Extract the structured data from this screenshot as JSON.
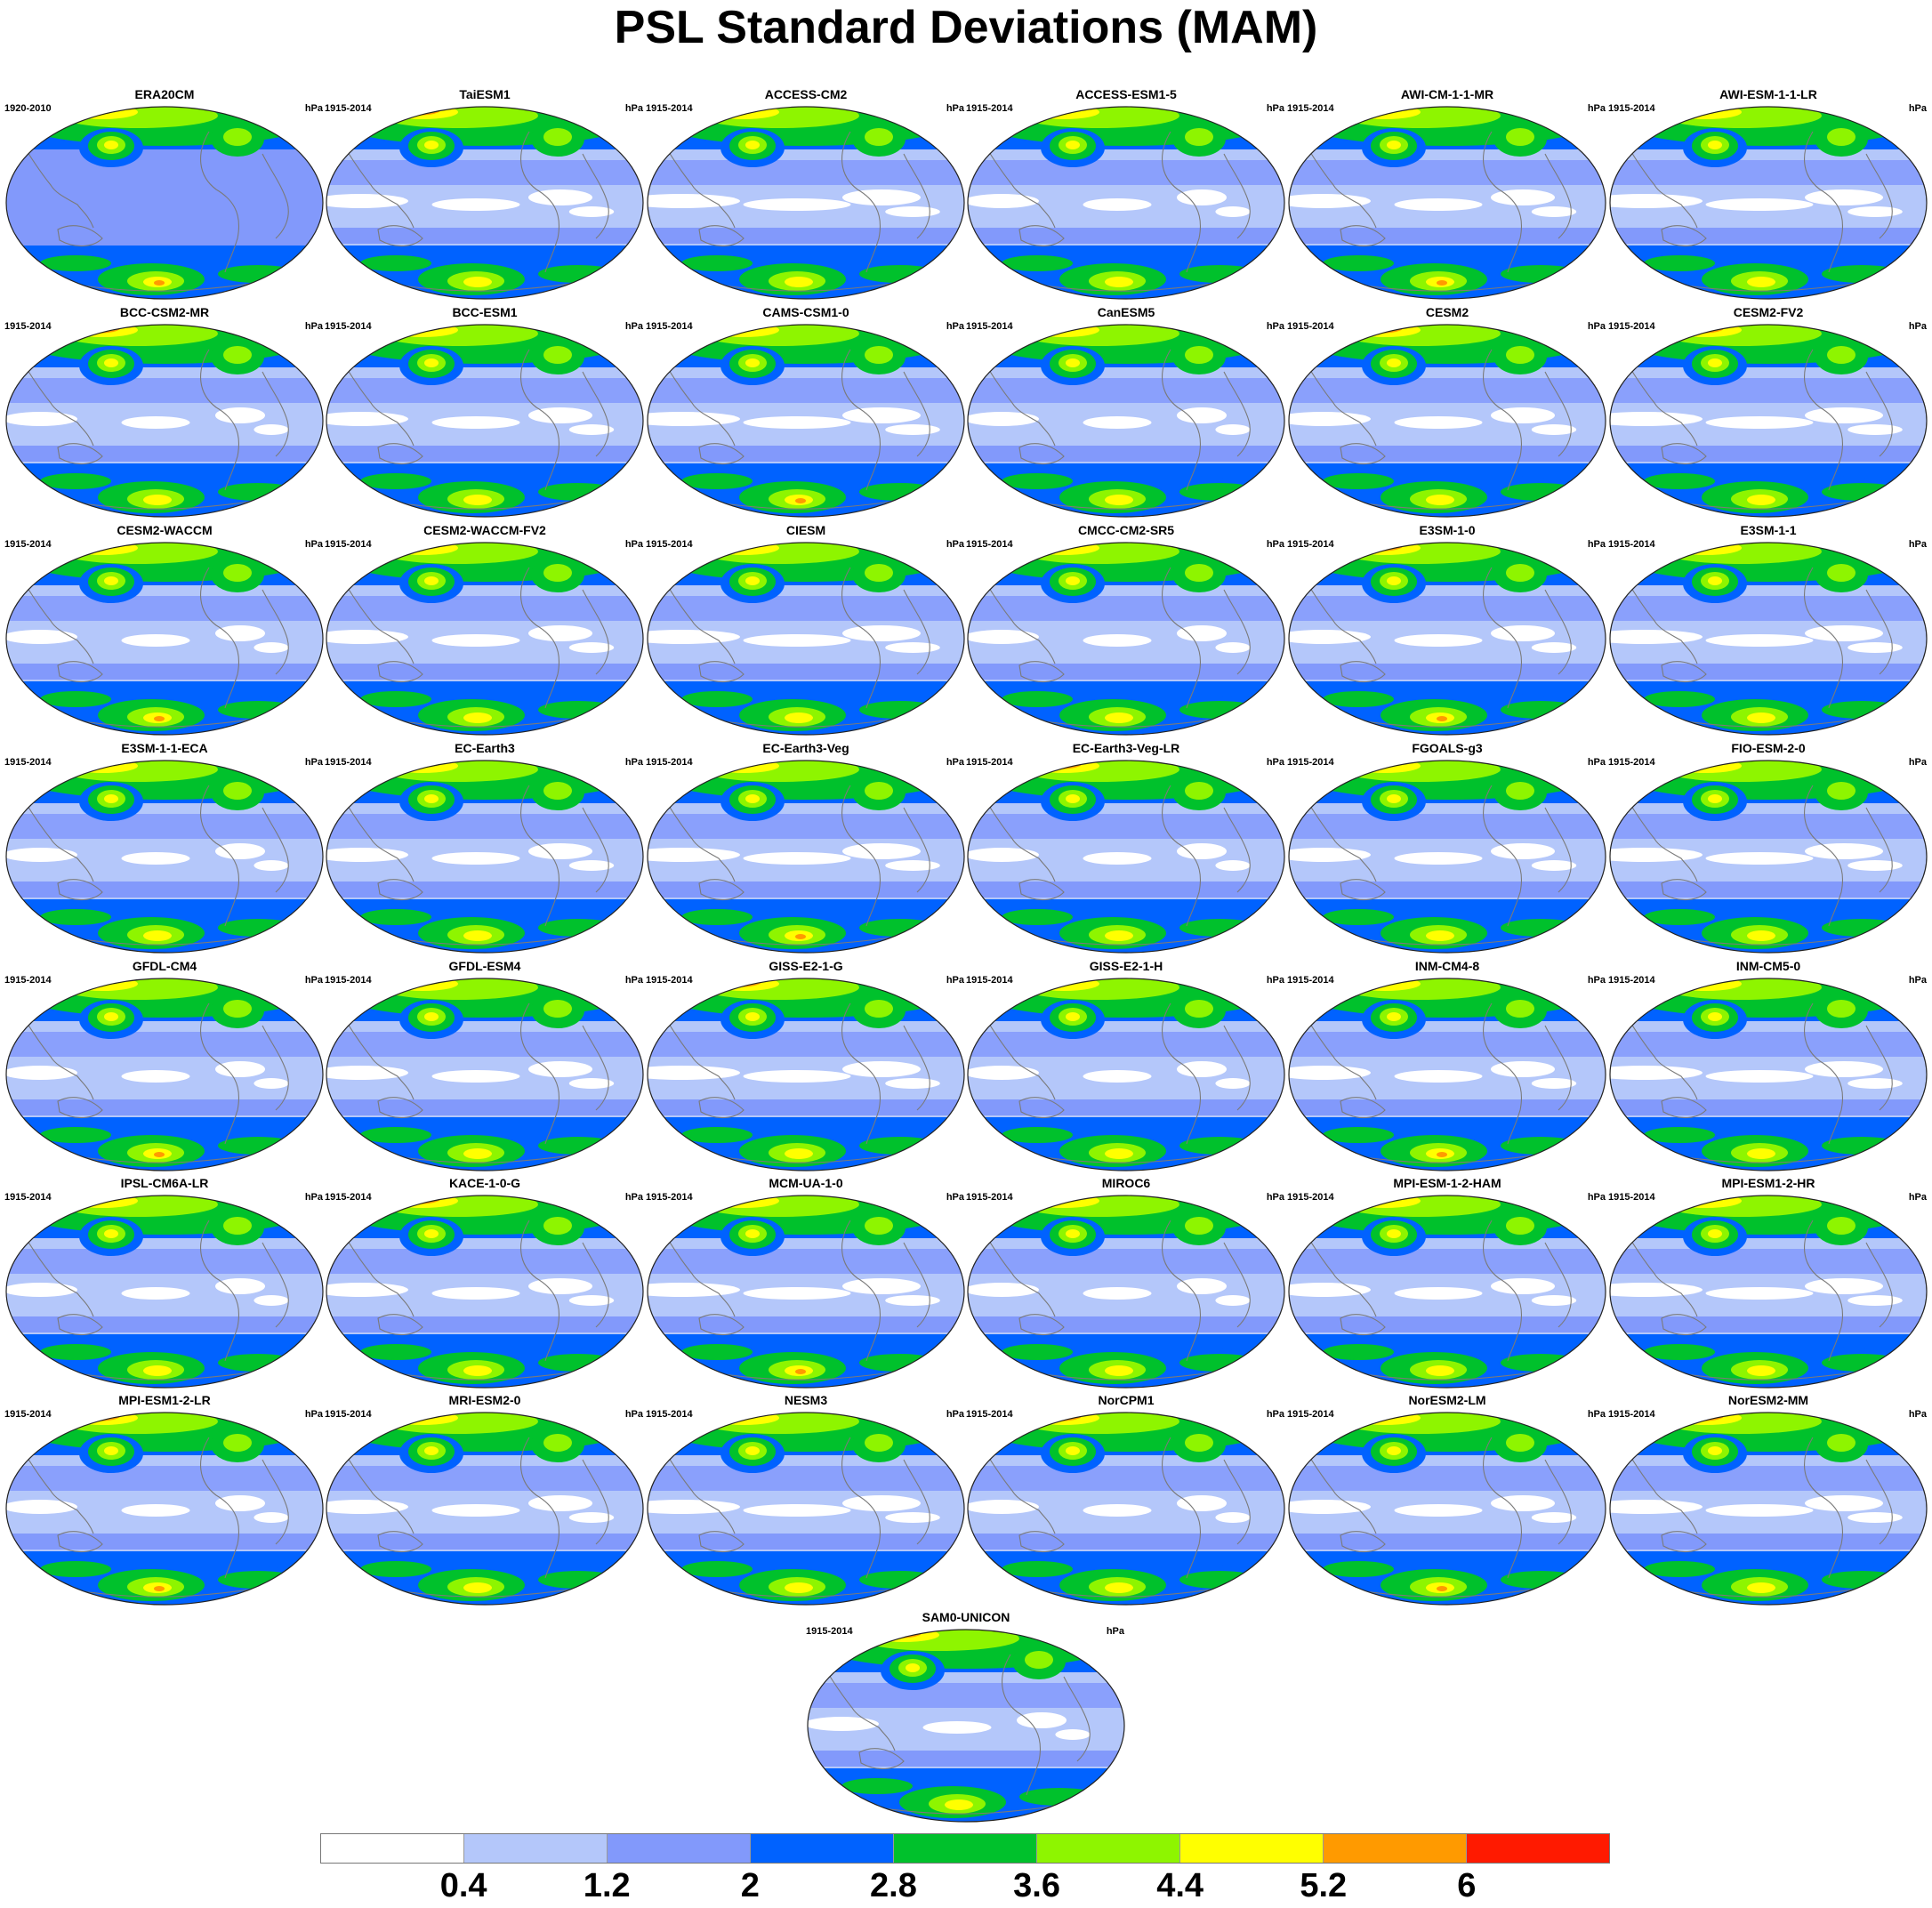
{
  "title": "PSL Standard Deviations (MAM)",
  "units": "hPa",
  "colorbar": {
    "colors": [
      "#ffffff",
      "#b4c7fa",
      "#8299fb",
      "#0062ff",
      "#00c12c",
      "#8ef500",
      "#ffff00",
      "#ff9a00",
      "#ff1a00"
    ],
    "labels": [
      "0.4",
      "1.2",
      "2",
      "2.8",
      "3.6",
      "4.4",
      "5.2",
      "6"
    ]
  },
  "panels": [
    {
      "name": "ERA20CM",
      "period": "1920-2010"
    },
    {
      "name": "TaiESM1",
      "period": "1915-2014"
    },
    {
      "name": "ACCESS-CM2",
      "period": "1915-2014"
    },
    {
      "name": "ACCESS-ESM1-5",
      "period": "1915-2014"
    },
    {
      "name": "AWI-CM-1-1-MR",
      "period": "1915-2014"
    },
    {
      "name": "AWI-ESM-1-1-LR",
      "period": "1915-2014"
    },
    {
      "name": "BCC-CSM2-MR",
      "period": "1915-2014"
    },
    {
      "name": "BCC-ESM1",
      "period": "1915-2014"
    },
    {
      "name": "CAMS-CSM1-0",
      "period": "1915-2014"
    },
    {
      "name": "CanESM5",
      "period": "1915-2014"
    },
    {
      "name": "CESM2",
      "period": "1915-2014"
    },
    {
      "name": "CESM2-FV2",
      "period": "1915-2014"
    },
    {
      "name": "CESM2-WACCM",
      "period": "1915-2014"
    },
    {
      "name": "CESM2-WACCM-FV2",
      "period": "1915-2014"
    },
    {
      "name": "CIESM",
      "period": "1915-2014"
    },
    {
      "name": "CMCC-CM2-SR5",
      "period": "1915-2014"
    },
    {
      "name": "E3SM-1-0",
      "period": "1915-2014"
    },
    {
      "name": "E3SM-1-1",
      "period": "1915-2014"
    },
    {
      "name": "E3SM-1-1-ECA",
      "period": "1915-2014"
    },
    {
      "name": "EC-Earth3",
      "period": "1915-2014"
    },
    {
      "name": "EC-Earth3-Veg",
      "period": "1915-2014"
    },
    {
      "name": "EC-Earth3-Veg-LR",
      "period": "1915-2014"
    },
    {
      "name": "FGOALS-g3",
      "period": "1915-2014"
    },
    {
      "name": "FIO-ESM-2-0",
      "period": "1915-2014"
    },
    {
      "name": "GFDL-CM4",
      "period": "1915-2014"
    },
    {
      "name": "GFDL-ESM4",
      "period": "1915-2014"
    },
    {
      "name": "GISS-E2-1-G",
      "period": "1915-2014"
    },
    {
      "name": "GISS-E2-1-H",
      "period": "1915-2014"
    },
    {
      "name": "INM-CM4-8",
      "period": "1915-2014"
    },
    {
      "name": "INM-CM5-0",
      "period": "1915-2014"
    },
    {
      "name": "IPSL-CM6A-LR",
      "period": "1915-2014"
    },
    {
      "name": "KACE-1-0-G",
      "period": "1915-2014"
    },
    {
      "name": "MCM-UA-1-0",
      "period": "1915-2014"
    },
    {
      "name": "MIROC6",
      "period": "1915-2014"
    },
    {
      "name": "MPI-ESM-1-2-HAM",
      "period": "1915-2014"
    },
    {
      "name": "MPI-ESM1-2-HR",
      "period": "1915-2014"
    },
    {
      "name": "MPI-ESM1-2-LR",
      "period": "1915-2014"
    },
    {
      "name": "MRI-ESM2-0",
      "period": "1915-2014"
    },
    {
      "name": "NESM3",
      "period": "1915-2014"
    },
    {
      "name": "NorCPM1",
      "period": "1915-2014"
    },
    {
      "name": "NorESM2-LM",
      "period": "1915-2014"
    },
    {
      "name": "NorESM2-MM",
      "period": "1915-2014"
    },
    {
      "name": "SAM0-UNICON",
      "period": "1915-2014"
    }
  ]
}
